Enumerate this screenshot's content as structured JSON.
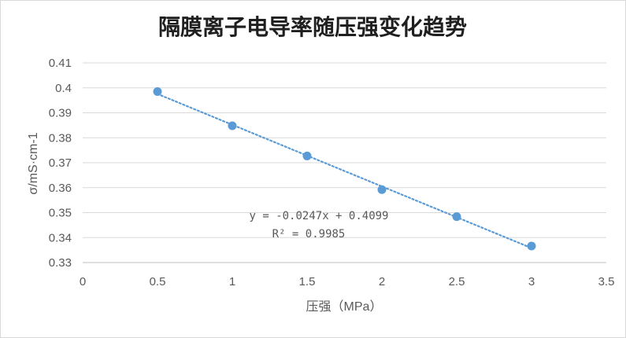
{
  "chart_data": {
    "type": "scatter",
    "title": "隔膜离子电导率随压强变化趋势",
    "xlabel": "压强（MPa）",
    "ylabel": "σ/mS·cm-1",
    "xlim": [
      0,
      3.5
    ],
    "ylim": [
      0.33,
      0.41
    ],
    "xticks": [
      "0",
      "0.5",
      "1",
      "1.5",
      "2",
      "2.5",
      "3",
      "3.5"
    ],
    "yticks": [
      "0.33",
      "0.34",
      "0.35",
      "0.36",
      "0.37",
      "0.38",
      "0.39",
      "0.4",
      "0.41"
    ],
    "grid": "horizontal",
    "legend": "none",
    "series": [
      {
        "x": [
          0.5,
          1,
          1.5,
          2,
          2.5,
          3
        ],
        "y": [
          0.3985,
          0.3848,
          0.3727,
          0.3592,
          0.3484,
          0.3366
        ],
        "color": "#5b9bd5",
        "marker": "circle"
      }
    ],
    "trendline": {
      "type": "linear",
      "slope": -0.0247,
      "intercept": 0.4099,
      "style": "dotted",
      "color": "#5b9bd5",
      "equation": "y = -0.0247x + 0.4099",
      "r_squared": "R² = 0.9985"
    }
  }
}
